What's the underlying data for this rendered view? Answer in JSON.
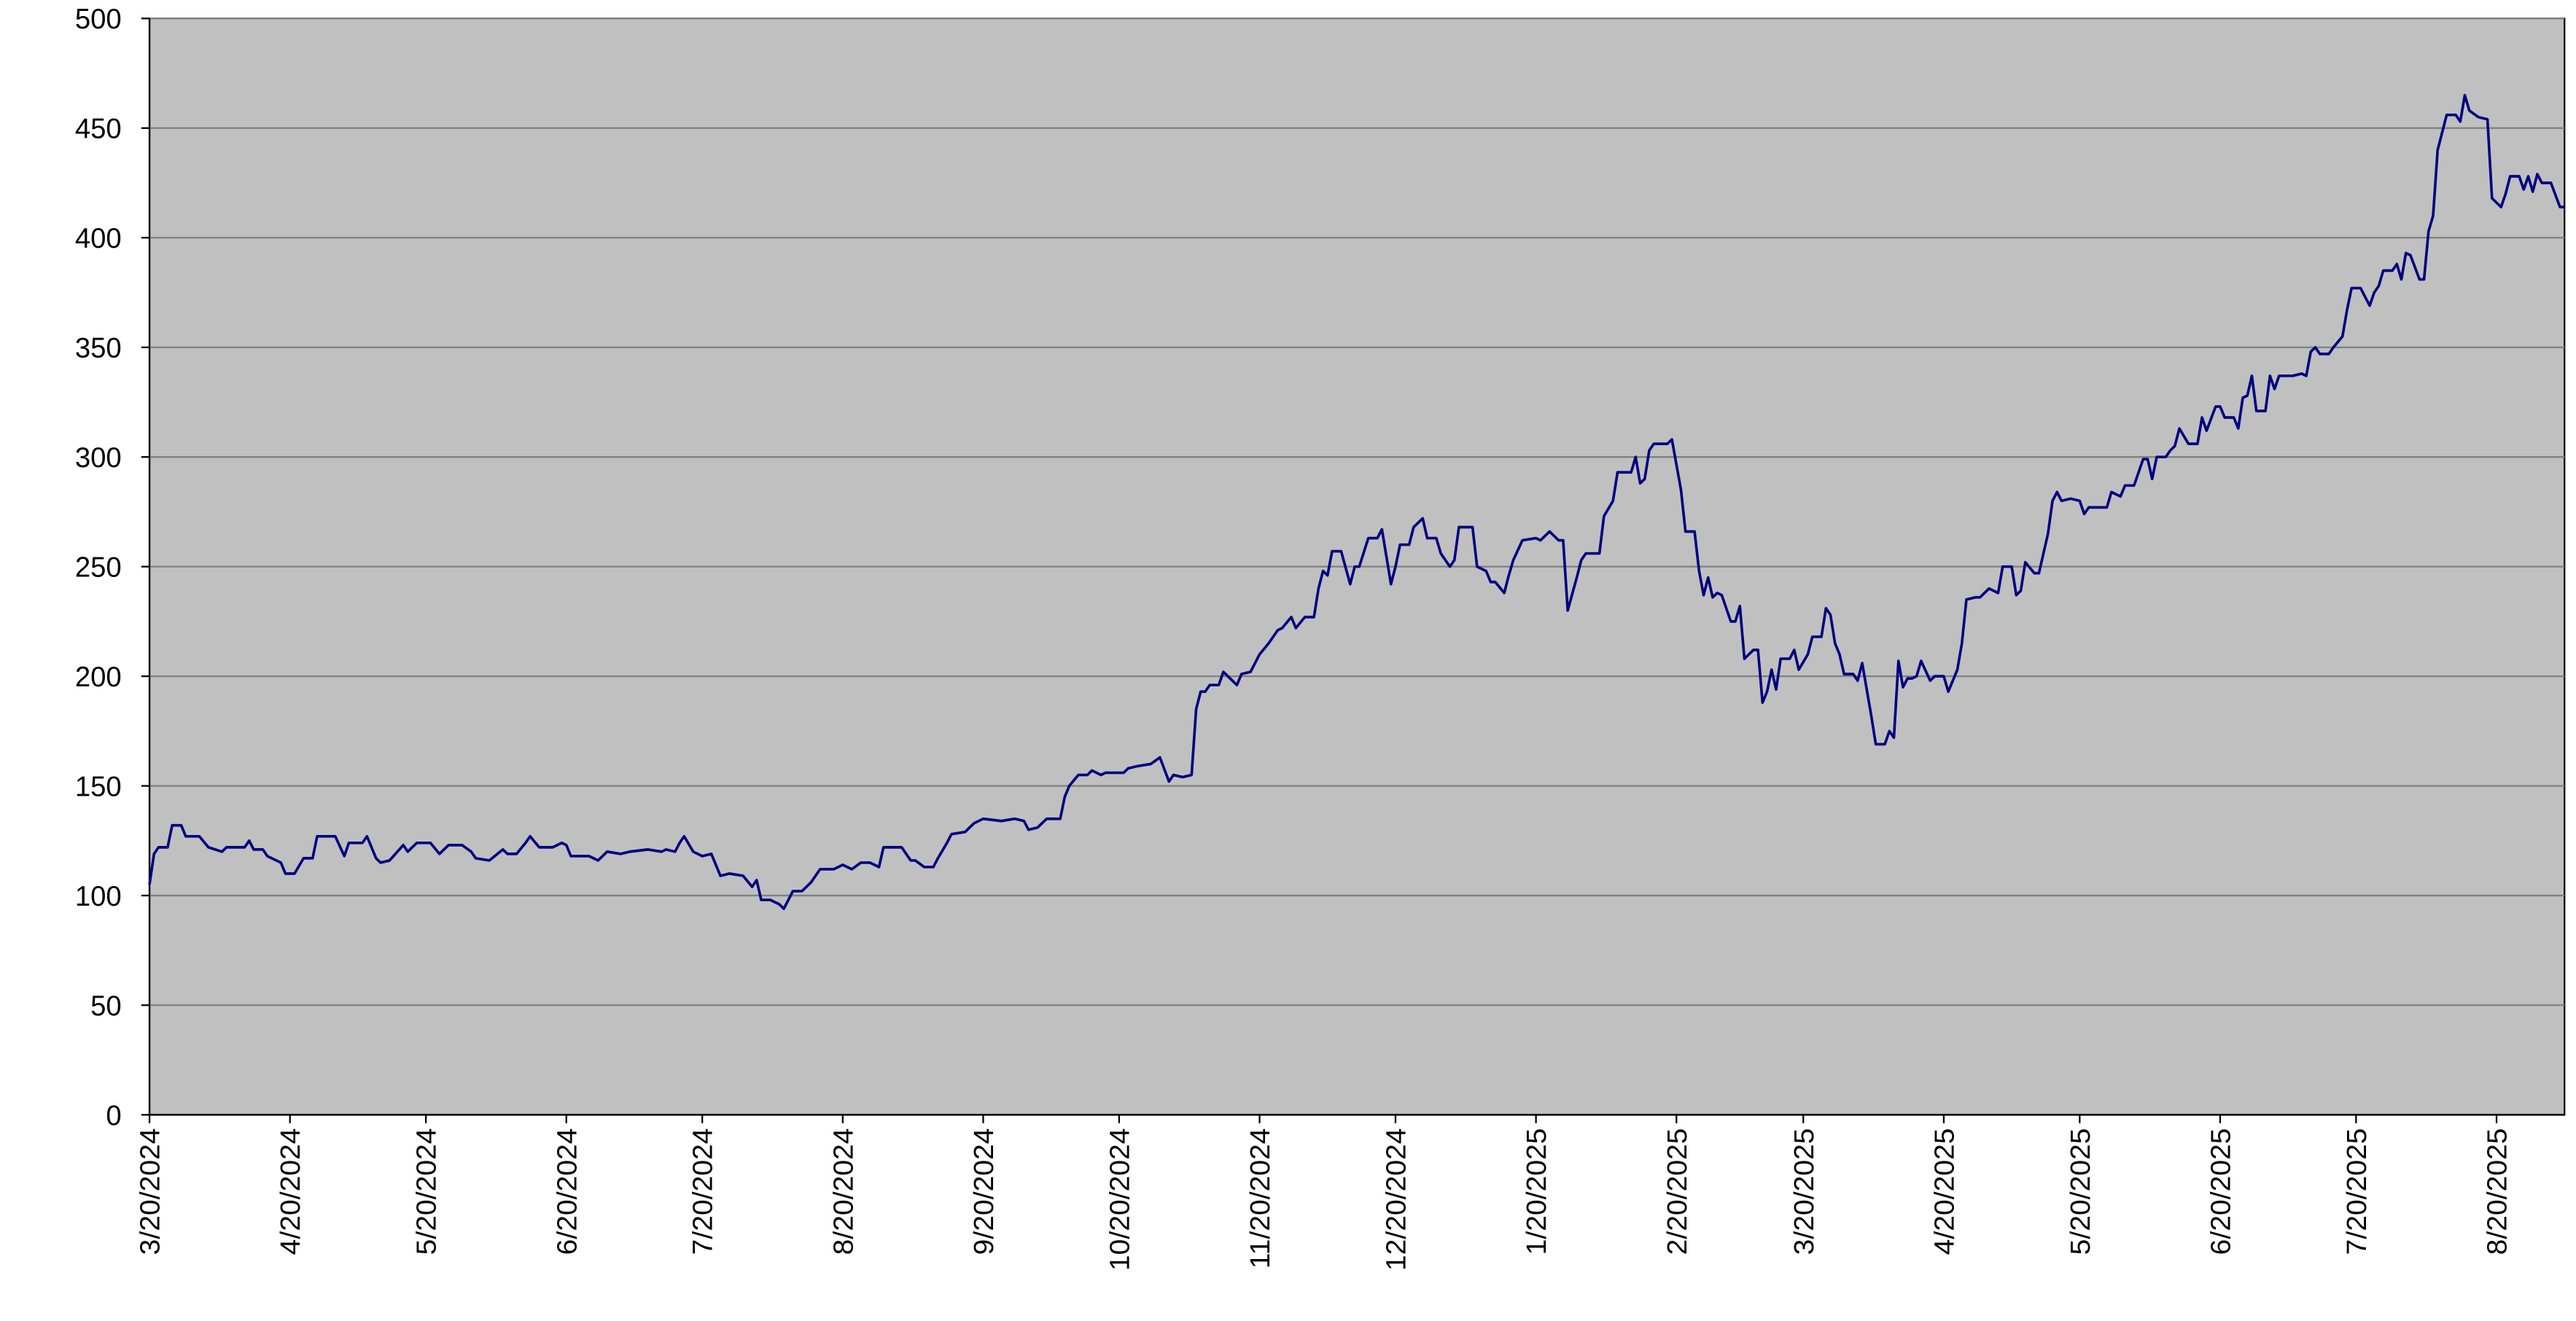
{
  "chart_data": {
    "type": "line",
    "color": "#000080",
    "background": "#c0c0c0",
    "grid": true,
    "xlim": [
      "3/20/2024",
      "9/4/2025"
    ],
    "xticks": [
      "3/20/2024",
      "4/20/2024",
      "5/20/2024",
      "6/20/2024",
      "7/20/2024",
      "8/20/2024",
      "9/20/2024",
      "10/20/2024",
      "11/20/2024",
      "12/20/2024",
      "1/20/2025",
      "2/20/2025",
      "3/20/2025",
      "4/20/2025",
      "5/20/2025",
      "6/20/2025",
      "7/20/2025",
      "8/20/2025"
    ],
    "ylim": [
      0,
      500
    ],
    "yticks": [
      0,
      50,
      100,
      150,
      200,
      250,
      300,
      350,
      400,
      450,
      500
    ],
    "x": [
      "3/20/2024",
      "3/21/2024",
      "3/22/2024",
      "3/24/2024",
      "3/25/2024",
      "3/27/2024",
      "3/28/2024",
      "3/31/2024",
      "4/2/2024",
      "4/5/2024",
      "4/6/2024",
      "4/10/2024",
      "4/11/2024",
      "4/12/2024",
      "4/14/2024",
      "4/15/2024",
      "4/18/2024",
      "4/19/2024",
      "4/21/2024",
      "4/23/2024",
      "4/25/2024",
      "4/26/2024",
      "4/30/2024",
      "5/2/2024",
      "5/3/2024",
      "5/6/2024",
      "5/7/2024",
      "5/9/2024",
      "5/10/2024",
      "5/12/2024",
      "5/15/2024",
      "5/16/2024",
      "5/18/2024",
      "5/21/2024",
      "5/23/2024",
      "5/25/2024",
      "5/28/2024",
      "5/30/2024",
      "5/31/2024",
      "6/3/2024",
      "6/6/2024",
      "6/7/2024",
      "6/9/2024",
      "6/11/2024",
      "6/12/2024",
      "6/14/2024",
      "6/17/2024",
      "6/19/2024",
      "6/20/2024",
      "6/21/2024",
      "6/25/2024",
      "6/27/2024",
      "6/29/2024",
      "7/2/2024",
      "7/4/2024",
      "7/8/2024",
      "7/11/2024",
      "7/12/2024",
      "7/14/2024",
      "7/15/2024",
      "7/16/2024",
      "7/18/2024",
      "7/20/2024",
      "7/22/2024",
      "7/24/2024",
      "7/26/2024",
      "7/29/2024",
      "7/31/2024",
      "8/1/2024",
      "8/2/2024",
      "8/4/2024",
      "8/6/2024",
      "8/7/2024",
      "8/9/2024",
      "8/11/2024",
      "8/13/2024",
      "8/15/2024",
      "8/18/2024",
      "8/20/2024",
      "8/22/2024",
      "8/24/2024",
      "8/26/2024",
      "8/28/2024",
      "8/29/2024",
      "9/2/2024",
      "9/4/2024",
      "9/5/2024",
      "9/7/2024",
      "9/9/2024",
      "9/10/2024",
      "9/12/2024",
      "9/13/2024",
      "9/16/2024",
      "9/18/2024",
      "9/20/2024",
      "9/24/2024",
      "9/27/2024",
      "9/29/2024",
      "9/30/2024",
      "10/2/2024",
      "10/4/2024",
      "10/7/2024",
      "10/8/2024",
      "10/9/2024",
      "10/11/2024",
      "10/13/2024",
      "10/14/2024",
      "10/16/2024",
      "10/17/2024",
      "10/21/2024",
      "10/22/2024",
      "10/24/2024",
      "10/27/2024",
      "10/29/2024",
      "10/31/2024",
      "11/1/2024",
      "11/3/2024",
      "11/5/2024",
      "11/6/2024",
      "11/7/2024",
      "11/8/2024",
      "11/9/2024",
      "11/11/2024",
      "11/12/2024",
      "11/13/2024",
      "11/15/2024",
      "11/16/2024",
      "11/18/2024",
      "11/20/2024",
      "11/22/2024",
      "11/24/2024",
      "11/25/2024",
      "11/27/2024",
      "11/28/2024",
      "11/30/2024",
      "12/2/2024",
      "12/3/2024",
      "12/4/2024",
      "12/5/2024",
      "12/6/2024",
      "12/8/2024",
      "12/10/2024",
      "12/11/2024",
      "12/12/2024",
      "12/14/2024",
      "12/16/2024",
      "12/17/2024",
      "12/19/2024",
      "12/20/2024",
      "12/21/2024",
      "12/23/2024",
      "12/24/2024",
      "12/26/2024",
      "12/27/2024",
      "12/29/2024",
      "12/30/2024",
      "1/1/2025",
      "1/2/2025",
      "1/3/2025",
      "1/6/2025",
      "1/7/2025",
      "1/9/2025",
      "1/10/2025",
      "1/11/2025",
      "1/13/2025",
      "1/14/2025",
      "1/15/2025",
      "1/17/2025",
      "1/20/2025",
      "1/21/2025",
      "1/23/2025",
      "1/25/2025",
      "1/26/2025",
      "1/27/2025",
      "1/29/2025",
      "1/30/2025",
      "1/31/2025",
      "2/3/2025",
      "2/4/2025",
      "2/6/2025",
      "2/7/2025",
      "2/10/2025",
      "2/11/2025",
      "2/12/2025",
      "2/13/2025",
      "2/14/2025",
      "2/15/2025",
      "2/18/2025",
      "2/19/2025",
      "2/21/2025",
      "2/22/2025",
      "2/24/2025",
      "2/25/2025",
      "2/26/2025",
      "2/27/2025",
      "2/28/2025",
      "3/1/2025",
      "3/2/2025",
      "3/4/2025",
      "3/5/2025",
      "3/6/2025",
      "3/7/2025",
      "3/9/2025",
      "3/10/2025",
      "3/11/2025",
      "3/12/2025",
      "3/13/2025",
      "3/14/2025",
      "3/15/2025",
      "3/17/2025",
      "3/18/2025",
      "3/19/2025",
      "3/21/2025",
      "3/22/2025",
      "3/24/2025",
      "3/25/2025",
      "3/26/2025",
      "3/27/2025",
      "3/28/2025",
      "3/29/2025",
      "3/31/2025",
      "4/1/2025",
      "4/2/2025",
      "4/4/2025",
      "4/5/2025",
      "4/7/2025",
      "4/8/2025",
      "4/9/2025",
      "4/10/2025",
      "4/11/2025",
      "4/12/2025",
      "4/13/2025",
      "4/14/2025",
      "4/15/2025",
      "4/17/2025",
      "4/18/2025",
      "4/20/2025",
      "4/21/2025",
      "4/23/2025",
      "4/24/2025",
      "4/25/2025",
      "4/27/2025",
      "4/28/2025",
      "4/30/2025",
      "5/2/2025",
      "5/3/2025",
      "5/5/2025",
      "5/6/2025",
      "5/7/2025",
      "5/8/2025",
      "5/10/2025",
      "5/11/2025",
      "5/13/2025",
      "5/14/2025",
      "5/15/2025",
      "5/16/2025",
      "5/18/2025",
      "5/20/2025",
      "5/21/2025",
      "5/22/2025",
      "5/26/2025",
      "5/27/2025",
      "5/29/2025",
      "5/30/2025",
      "6/1/2025",
      "6/3/2025",
      "6/4/2025",
      "6/5/2025",
      "6/6/2025",
      "6/8/2025",
      "6/9/2025",
      "6/10/2025",
      "6/11/2025",
      "6/13/2025",
      "6/15/2025",
      "6/16/2025",
      "6/17/2025",
      "6/19/2025",
      "6/20/2025",
      "6/21/2025",
      "6/23/2025",
      "6/24/2025",
      "6/25/2025",
      "6/26/2025",
      "6/27/2025",
      "6/28/2025",
      "6/30/2025",
      "7/1/2025",
      "7/2/2025",
      "7/3/2025",
      "7/6/2025",
      "7/8/2025",
      "7/9/2025",
      "7/10/2025",
      "7/11/2025",
      "7/12/2025",
      "7/14/2025",
      "7/15/2025",
      "7/17/2025",
      "7/18/2025",
      "7/19/2025",
      "7/21/2025",
      "7/23/2025",
      "7/24/2025",
      "7/25/2025",
      "7/26/2025",
      "7/28/2025",
      "7/29/2025",
      "7/30/2025",
      "7/31/2025",
      "8/1/2025",
      "8/3/2025",
      "8/4/2025",
      "8/5/2025",
      "8/6/2025",
      "8/7/2025",
      "8/9/2025",
      "8/11/2025",
      "8/12/2025",
      "8/13/2025",
      "8/14/2025",
      "8/16/2025",
      "8/18/2025",
      "8/19/2025",
      "8/21/2025",
      "8/22/2025",
      "8/23/2025",
      "8/25/2025",
      "8/26/2025",
      "8/27/2025",
      "8/28/2025",
      "8/29/2025",
      "8/30/2025",
      "9/1/2025",
      "9/3/2025",
      "9/4/2025"
    ],
    "values": [
      105,
      119,
      122,
      122,
      132,
      132,
      127,
      127,
      122,
      120,
      122,
      122,
      125,
      121,
      121,
      118,
      115,
      110,
      110,
      117,
      117,
      127,
      127,
      118,
      124,
      124,
      127,
      117,
      115,
      116,
      123,
      120,
      124,
      124,
      119,
      123,
      123,
      120,
      117,
      116,
      121,
      119,
      119,
      124,
      127,
      122,
      122,
      124,
      123,
      118,
      118,
      116,
      120,
      119,
      120,
      121,
      120,
      121,
      120,
      124,
      127,
      120,
      118,
      119,
      109,
      110,
      109,
      104,
      107,
      98,
      98,
      96,
      94,
      102,
      102,
      106,
      112,
      112,
      114,
      112,
      115,
      115,
      113,
      122,
      122,
      116,
      116,
      113,
      113,
      117,
      124,
      128,
      129,
      133,
      135,
      134,
      135,
      134,
      130,
      131,
      135,
      135,
      145,
      150,
      155,
      155,
      157,
      155,
      156,
      156,
      158,
      159,
      160,
      163,
      152,
      155,
      154,
      155,
      185,
      193,
      193,
      196,
      196,
      202,
      200,
      196,
      201,
      202,
      210,
      215,
      221,
      222,
      227,
      222,
      227,
      227,
      240,
      248,
      246,
      257,
      257,
      242,
      250,
      250,
      263,
      263,
      267,
      242,
      250,
      260,
      260,
      268,
      272,
      263,
      263,
      256,
      250,
      253,
      268,
      268,
      250,
      248,
      243,
      243,
      238,
      246,
      253,
      262,
      263,
      262,
      266,
      262,
      262,
      230,
      245,
      253,
      256,
      256,
      273,
      280,
      293,
      293,
      300,
      288,
      290,
      303,
      306,
      306,
      308,
      285,
      266,
      266,
      248,
      237,
      245,
      236,
      238,
      237,
      225,
      225,
      232,
      208,
      212,
      212,
      188,
      193,
      203,
      194,
      208,
      208,
      212,
      203,
      210,
      218,
      218,
      231,
      228,
      215,
      210,
      201,
      201,
      198,
      206,
      182,
      169,
      169,
      175,
      172,
      207,
      195,
      199,
      199,
      200,
      207,
      198,
      200,
      200,
      193,
      203,
      215,
      235,
      236,
      236,
      240,
      238,
      250,
      250,
      237,
      239,
      252,
      247,
      247,
      265,
      280,
      284,
      280,
      281,
      280,
      274,
      277,
      277,
      284,
      282,
      287,
      287,
      299,
      299,
      290,
      300,
      300,
      303,
      305,
      313,
      306,
      306,
      318,
      312,
      323,
      323,
      318,
      318,
      313,
      327,
      328,
      337,
      321,
      321,
      337,
      331,
      337,
      337,
      338,
      337,
      348,
      350,
      347,
      347,
      350,
      355,
      367,
      377,
      377,
      369,
      375,
      378,
      385,
      385,
      388,
      381,
      393,
      392,
      381,
      381,
      403,
      410,
      440,
      456,
      456,
      453,
      465,
      458,
      455,
      454,
      418,
      414,
      420,
      428,
      428,
      422,
      428,
      421,
      429,
      425,
      425,
      414,
      414
    ]
  }
}
